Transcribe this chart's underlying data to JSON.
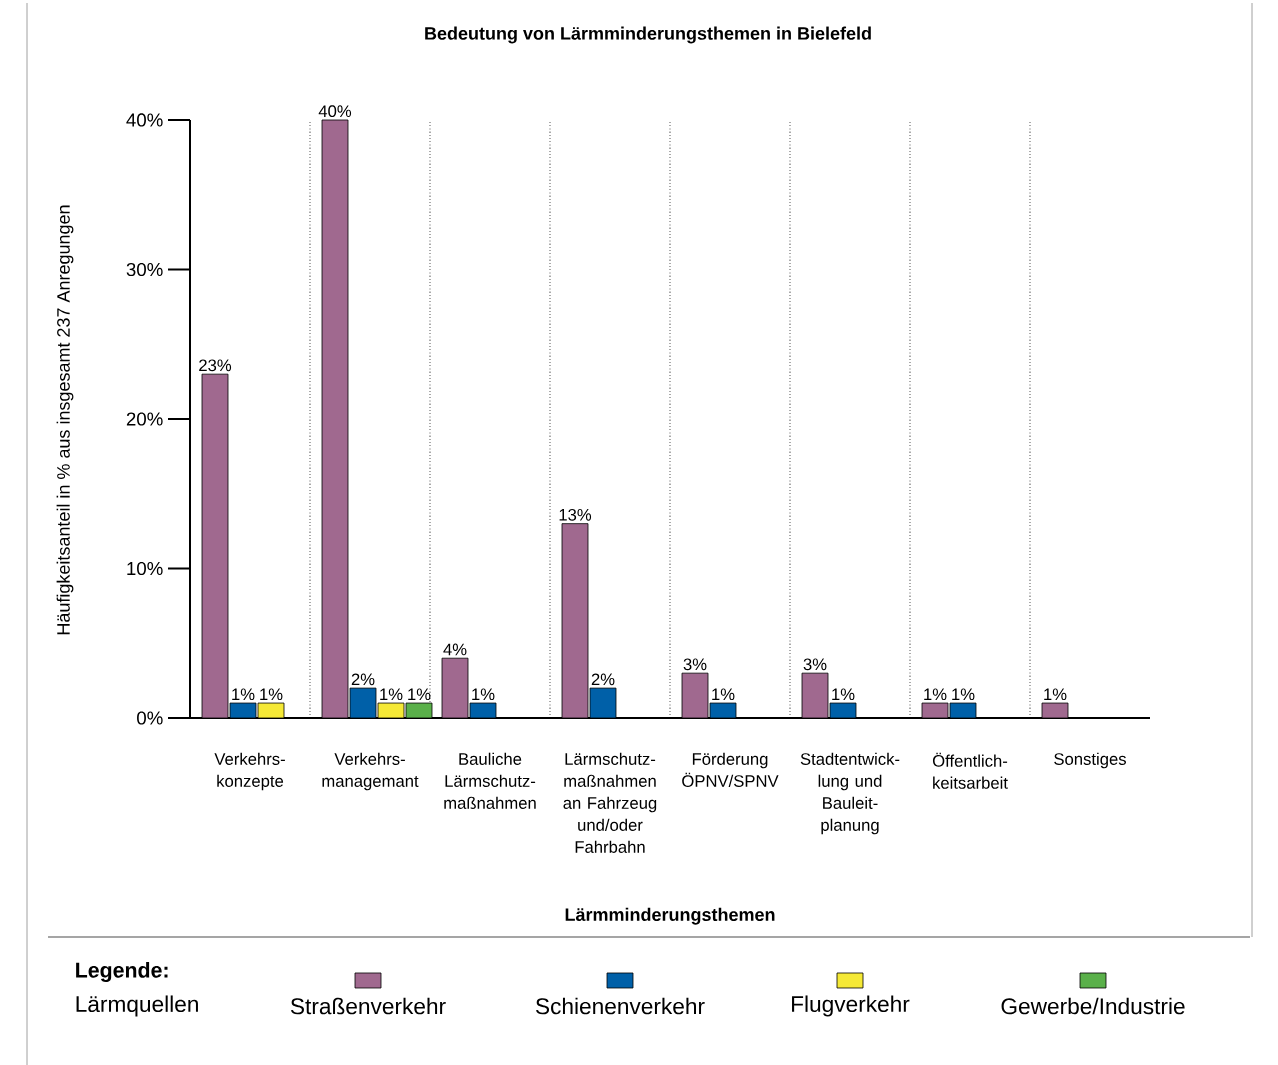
{
  "chart_data": {
    "type": "bar",
    "title": "Bedeutung von Lärmminderungsthemen in Bielefeld",
    "xlabel": "Lärmminderungsthemen",
    "ylabel": "Häufigkeitsanteil in % aus insgesamt 237 Anregungen",
    "legend_title": "Legende:",
    "annotations": [
      "Lärmquellen"
    ],
    "categories": [
      "Verkehrs-konzepte",
      "Verkehrs-managemant",
      "Bauliche Lärmschutz-maßnahmen",
      "Lärmschutz-maßnahmen an Fahrzeug und/oder Fahrbahn",
      "Förderung ÖPNV/SPNV",
      "Stadtentwick-lung und Bauleit-planung",
      "Öffentlich-keitsarbeit",
      "Sonstiges"
    ],
    "series": [
      {
        "name": "Straßenverkehr",
        "color": "#a0698f",
        "values": [
          23,
          40,
          4,
          13,
          3,
          3,
          1,
          1
        ],
        "value_labels": [
          "23%",
          "40%",
          "4%",
          "13%",
          "3%",
          "3%",
          "1%",
          "1%"
        ]
      },
      {
        "name": "Schienenverkehr",
        "color": "#0060a8",
        "values": [
          1,
          2,
          1,
          2,
          1,
          1,
          1,
          null
        ],
        "value_labels": [
          "1%",
          "2%",
          "1%",
          "2%",
          "1%",
          "1%",
          "1%",
          null
        ]
      },
      {
        "name": "Flugverkehr",
        "color": "#f5e936",
        "values": [
          1,
          1,
          null,
          null,
          null,
          null,
          null,
          null
        ],
        "value_labels": [
          "1%",
          "1%",
          null,
          null,
          null,
          null,
          null,
          null
        ]
      },
      {
        "name": "Gewerbe/Industrie",
        "color": "#5ab04a",
        "values": [
          null,
          1,
          null,
          null,
          null,
          null,
          null,
          null
        ],
        "value_labels": [
          null,
          "1%",
          null,
          null,
          null,
          null,
          null,
          null
        ]
      }
    ],
    "ylim": [
      0,
      40
    ],
    "yticks": [
      {
        "value": 0,
        "label": "0%"
      },
      {
        "value": 10,
        "label": "10%"
      },
      {
        "value": 20,
        "label": "20%"
      },
      {
        "value": 30,
        "label": "30%"
      },
      {
        "value": 40,
        "label": "40%"
      }
    ],
    "grid": "x",
    "legend": "bottom"
  }
}
